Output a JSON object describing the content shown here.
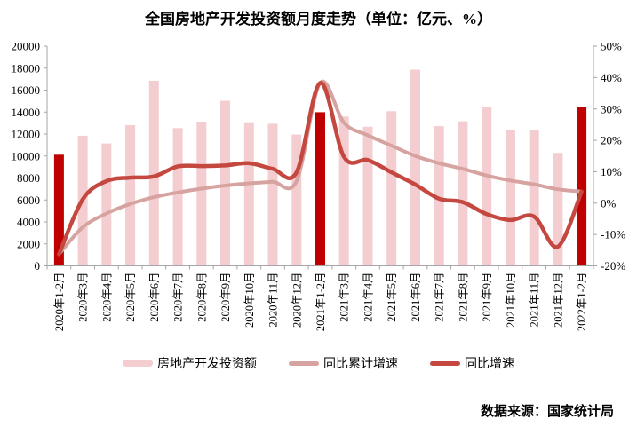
{
  "title": "全国房地产开发投资额月度走势（单位：亿元、%）",
  "source": "数据来源：国家统计局",
  "colors": {
    "bar_light": "#F3CDD0",
    "bar_dark": "#C00000",
    "line_cumulative": "#D6A3A0",
    "line_monthly": "#C4483F",
    "axis": "#A6A6A6",
    "tick_text": "#000000"
  },
  "legend": {
    "items": [
      {
        "key": "investment",
        "label": "房地产开发投资额",
        "swatch": "bar",
        "color": "#F3CDD0"
      },
      {
        "key": "cumulative-growth",
        "label": "同比累计增速",
        "swatch": "line",
        "color": "#D6A3A0"
      },
      {
        "key": "yoy-growth",
        "label": "同比增速",
        "swatch": "line",
        "color": "#C4483F"
      }
    ]
  },
  "chart_data": {
    "type": "combo-bar-line",
    "title": "全国房地产开发投资额月度走势（单位：亿元、%）",
    "grid": false,
    "legend_position": "bottom",
    "categories": [
      "2020年1-2月",
      "2020年3月",
      "2020年4月",
      "2020年5月",
      "2020年6月",
      "2020年7月",
      "2020年8月",
      "2020年9月",
      "2020年10月",
      "2020年11月",
      "2020年12月",
      "2021年1-2月",
      "2021年3月",
      "2021年4月",
      "2021年5月",
      "2021年6月",
      "2021年7月",
      "2021年8月",
      "2021年9月",
      "2021年10月",
      "2021年11月",
      "2021年12月",
      "2022年1-2月"
    ],
    "series": [
      {
        "name": "房地产开发投资额",
        "type": "bar",
        "axis": "left",
        "color": "#F3CDD0",
        "highlight_color": "#C00000",
        "highlight_indices": [
          0,
          11,
          22
        ],
        "values": [
          10115,
          11848,
          11140,
          12817,
          16860,
          12545,
          13129,
          15030,
          13072,
          12936,
          11951,
          13986,
          13590,
          12664,
          14078,
          17861,
          12716,
          13165,
          14508,
          12366,
          12380,
          10288,
          14499
        ]
      },
      {
        "name": "同比累计增速",
        "type": "line",
        "axis": "right",
        "color": "#D6A3A0",
        "values": [
          -16.3,
          -7.7,
          -3.3,
          -0.3,
          1.9,
          3.4,
          4.6,
          5.6,
          6.3,
          6.8,
          7.0,
          38.3,
          25.6,
          21.6,
          18.3,
          15.0,
          12.7,
          10.9,
          8.8,
          7.2,
          6.0,
          4.4,
          3.7
        ]
      },
      {
        "name": "同比增速",
        "type": "line",
        "axis": "right",
        "color": "#C4483F",
        "values": [
          -16.3,
          1.2,
          7.0,
          8.1,
          8.5,
          11.7,
          11.8,
          12.0,
          12.7,
          10.9,
          9.8,
          38.3,
          14.7,
          13.7,
          9.8,
          5.9,
          1.4,
          0.3,
          -3.5,
          -5.4,
          -4.3,
          -13.9,
          3.7
        ]
      }
    ],
    "left_axis": {
      "min": 0,
      "max": 20000,
      "tick_labels": [
        "0",
        "2000",
        "4000",
        "6000",
        "8000",
        "10000",
        "12000",
        "14000",
        "16000",
        "18000",
        "20000"
      ]
    },
    "right_axis": {
      "min": -20,
      "max": 50,
      "tick_labels": [
        "-20%",
        "-10%",
        "0%",
        "10%",
        "20%",
        "30%",
        "40%",
        "50%"
      ]
    }
  }
}
